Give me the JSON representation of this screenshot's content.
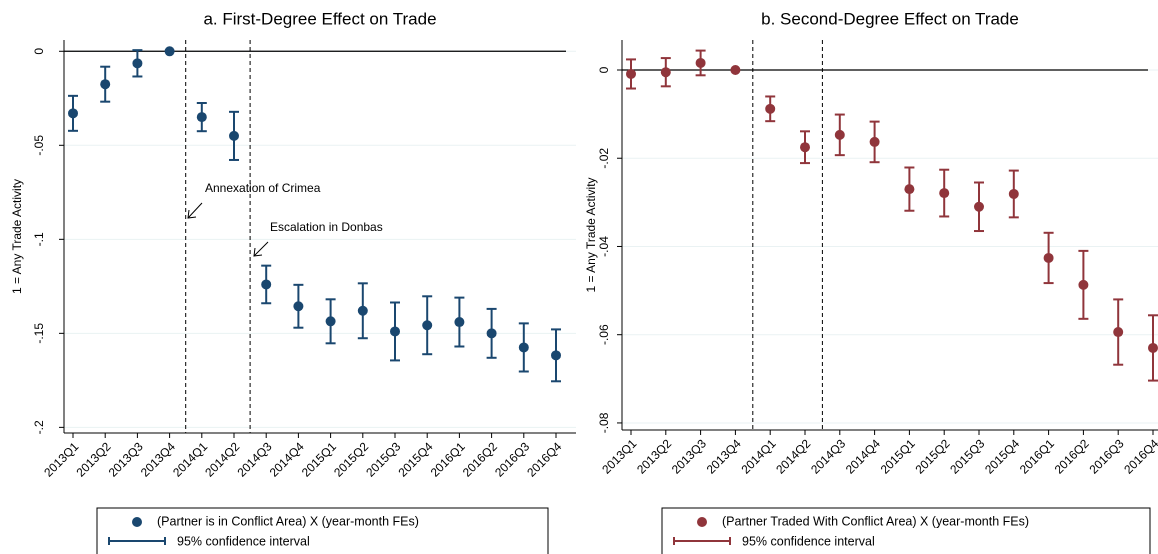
{
  "chart_data": [
    {
      "type": "errorbar",
      "title": "a. First-Degree Effect on Trade",
      "y_label": "1 = Any Trade Activity",
      "categories": [
        "2013Q1",
        "2013Q2",
        "2013Q3",
        "2013Q4",
        "2014Q1",
        "2014Q2",
        "2014Q3",
        "2014Q4",
        "2015Q1",
        "2015Q2",
        "2015Q3",
        "2015Q4",
        "2016Q1",
        "2016Q2",
        "2016Q3",
        "2016Q4"
      ],
      "series": [
        {
          "name": "(Partner is in Conflict Area) X (year-month FEs)",
          "color": "#1a476f",
          "values": [
            -0.033,
            -0.0175,
            -0.0064,
            0,
            -0.035,
            -0.045,
            -0.124,
            -0.1356,
            -0.1436,
            -0.138,
            -0.149,
            -0.1457,
            -0.144,
            -0.15,
            -0.1575,
            -0.1617
          ],
          "errors": [
            0.0093,
            0.0093,
            0.007,
            0,
            0.0075,
            0.0128,
            0.01,
            0.0114,
            0.0117,
            0.0146,
            0.0154,
            0.0154,
            0.013,
            0.013,
            0.0128,
            0.0138
          ]
        }
      ],
      "error_label": "95% confidence interval",
      "ylim": [
        -0.203,
        0.006
      ],
      "yticks": [
        0,
        {
          "value": -0.05,
          "label": "-.05"
        },
        {
          "value": -0.1,
          "label": "-.1"
        },
        {
          "value": -0.15,
          "label": "-.15"
        },
        {
          "value": -0.2,
          "label": "-.2"
        }
      ],
      "hline": 0,
      "vlines": [
        3.5,
        5.5
      ],
      "grid": true,
      "annotations": [
        "Annexation of Crimea",
        "Escalation in Donbas"
      ]
    },
    {
      "type": "errorbar",
      "title": "b. Second-Degree Effect on Trade",
      "y_label": "1 = Any Trade Activity",
      "categories": [
        "2013Q1",
        "2013Q2",
        "2013Q3",
        "2013Q4",
        "2014Q1",
        "2014Q2",
        "2014Q3",
        "2014Q4",
        "2015Q1",
        "2015Q2",
        "2015Q3",
        "2015Q4",
        "2016Q1",
        "2016Q2",
        "2016Q3",
        "2016Q4"
      ],
      "series": [
        {
          "name": "(Partner Traded With Conflict Area) X (year-month FEs)",
          "color": "#90353b",
          "values": [
            -0.0009,
            -0.0005,
            0.0016,
            0,
            -0.0088,
            -0.0175,
            -0.0147,
            -0.0163,
            -0.027,
            -0.0279,
            -0.031,
            -0.0281,
            -0.0426,
            -0.0487,
            -0.0594,
            -0.063
          ],
          "errors": [
            0.0033,
            0.0032,
            0.0028,
            0,
            0.0028,
            0.0036,
            0.0046,
            0.0046,
            0.0049,
            0.0053,
            0.0055,
            0.0053,
            0.0057,
            0.0077,
            0.0074,
            0.0074
          ]
        }
      ],
      "error_label": "95% confidence interval",
      "ylim": [
        -0.0816,
        0.0068
      ],
      "yticks": [
        0,
        {
          "value": -0.02,
          "label": "-.02"
        },
        {
          "value": -0.04,
          "label": "-.04"
        },
        {
          "value": -0.06,
          "label": "-.06"
        },
        {
          "value": -0.08,
          "label": "-.08"
        }
      ],
      "hline": 0,
      "vlines": [
        3.5,
        5.5
      ],
      "grid": true
    }
  ]
}
